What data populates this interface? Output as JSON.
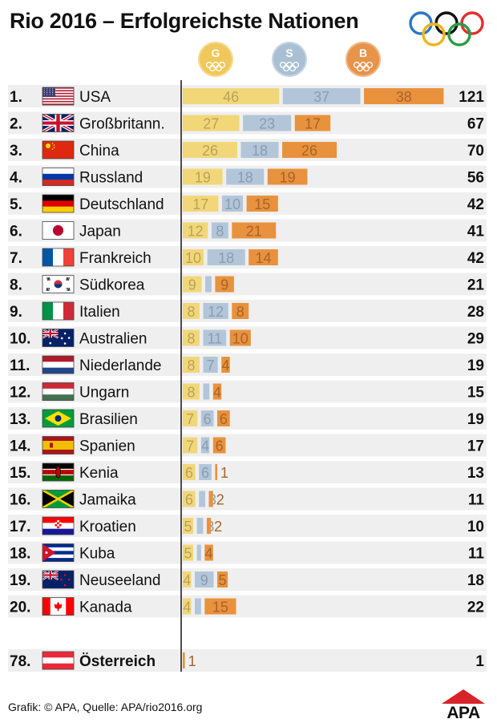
{
  "title": "Rio 2016 – Erfolgreichste Nationen",
  "medal_headers": {
    "gold": "G",
    "silver": "S",
    "bronze": "B"
  },
  "colors": {
    "gold": "#f2d779",
    "silver": "#b3c6d9",
    "bronze": "#e8923d",
    "gold_text": "#b9a25a",
    "silver_text": "#8a9cb0",
    "bronze_text": "#a8622a",
    "row_band": "#efefef"
  },
  "footer": {
    "source": "Grafik: © APA, Quelle: APA/rio2016.org",
    "logo_text": "APA"
  },
  "chart_data": {
    "type": "bar",
    "stacked": true,
    "series": [
      {
        "name": "G"
      },
      {
        "name": "S"
      },
      {
        "name": "B"
      }
    ],
    "rows": [
      {
        "rank": "1.",
        "country": "USA",
        "flag": "usa-flag",
        "gold": 46,
        "silver": 37,
        "bronze": 38,
        "total": 121
      },
      {
        "rank": "2.",
        "country": "Großbritann.",
        "flag": "uk-flag",
        "gold": 27,
        "silver": 23,
        "bronze": 17,
        "total": 67
      },
      {
        "rank": "3.",
        "country": "China",
        "flag": "china-flag",
        "gold": 26,
        "silver": 18,
        "bronze": 26,
        "total": 70
      },
      {
        "rank": "4.",
        "country": "Russland",
        "flag": "russia-flag",
        "gold": 19,
        "silver": 18,
        "bronze": 19,
        "total": 56
      },
      {
        "rank": "5.",
        "country": "Deutschland",
        "flag": "germany-flag",
        "gold": 17,
        "silver": 10,
        "bronze": 15,
        "total": 42
      },
      {
        "rank": "6.",
        "country": "Japan",
        "flag": "japan-flag",
        "gold": 12,
        "silver": 8,
        "bronze": 21,
        "total": 41
      },
      {
        "rank": "7.",
        "country": "Frankreich",
        "flag": "france-flag",
        "gold": 10,
        "silver": 18,
        "bronze": 14,
        "total": 42
      },
      {
        "rank": "8.",
        "country": "Südkorea",
        "flag": "south-korea-flag",
        "gold": 9,
        "silver": 3,
        "bronze": 9,
        "total": 21
      },
      {
        "rank": "9.",
        "country": "Italien",
        "flag": "italy-flag",
        "gold": 8,
        "silver": 12,
        "bronze": 8,
        "total": 28
      },
      {
        "rank": "10.",
        "country": "Australien",
        "flag": "australia-flag",
        "gold": 8,
        "silver": 11,
        "bronze": 10,
        "total": 29
      },
      {
        "rank": "11.",
        "country": "Niederlande",
        "flag": "netherlands-flag",
        "gold": 8,
        "silver": 7,
        "bronze": 4,
        "total": 19
      },
      {
        "rank": "12.",
        "country": "Ungarn",
        "flag": "hungary-flag",
        "gold": 8,
        "silver": 3,
        "bronze": 4,
        "total": 15
      },
      {
        "rank": "13.",
        "country": "Brasilien",
        "flag": "brazil-flag",
        "gold": 7,
        "silver": 6,
        "bronze": 6,
        "total": 19
      },
      {
        "rank": "14.",
        "country": "Spanien",
        "flag": "spain-flag",
        "gold": 7,
        "silver": 4,
        "bronze": 6,
        "total": 17
      },
      {
        "rank": "15.",
        "country": "Kenia",
        "flag": "kenya-flag",
        "gold": 6,
        "silver": 6,
        "bronze": 1,
        "total": 13
      },
      {
        "rank": "16.",
        "country": "Jamaika",
        "flag": "jamaica-flag",
        "gold": 6,
        "silver": 3,
        "bronze": 2,
        "total": 11
      },
      {
        "rank": "17.",
        "country": "Kroatien",
        "flag": "croatia-flag",
        "gold": 5,
        "silver": 3,
        "bronze": 2,
        "total": 10
      },
      {
        "rank": "18.",
        "country": "Kuba",
        "flag": "cuba-flag",
        "gold": 5,
        "silver": 2,
        "bronze": 4,
        "total": 11
      },
      {
        "rank": "19.",
        "country": "Neuseeland",
        "flag": "new-zealand-flag",
        "gold": 4,
        "silver": 9,
        "bronze": 5,
        "total": 18
      },
      {
        "rank": "20.",
        "country": "Kanada",
        "flag": "canada-flag",
        "gold": 4,
        "silver": 3,
        "bronze": 15,
        "total": 22
      },
      {
        "rank": "78.",
        "country": "Österreich",
        "flag": "austria-flag",
        "gold": 0,
        "silver": 0,
        "bronze": 1,
        "total": 1,
        "highlight": true
      }
    ]
  }
}
